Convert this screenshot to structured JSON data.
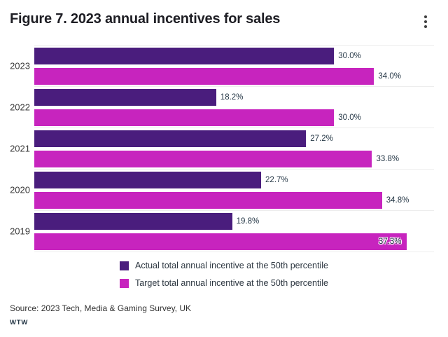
{
  "header": {
    "title": "Figure 7. 2023 annual incentives for sales",
    "menu_icon": "kebab-menu-icon"
  },
  "chart_data": {
    "type": "bar",
    "orientation": "horizontal",
    "title": "Figure 7. 2023 annual incentives for sales",
    "categories": [
      "2023",
      "2022",
      "2021",
      "2020",
      "2019"
    ],
    "series": [
      {
        "name": "Actual total annual incentive at the 50th percentile",
        "color": "#4A1D7D",
        "values": [
          30.0,
          18.2,
          27.2,
          22.7,
          19.8
        ]
      },
      {
        "name": "Target total annual incentive at the 50th percentile",
        "color": "#C724BE",
        "values": [
          34.0,
          30.0,
          33.8,
          34.8,
          37.3
        ]
      }
    ],
    "value_format": "{value}%",
    "xlabel": "",
    "ylabel": "",
    "xlim": [
      0,
      40
    ],
    "grid": "group-separator-lines",
    "legend_position": "bottom-center"
  },
  "footer": {
    "source": "Source: 2023 Tech, Media & Gaming Survey, UK",
    "brand": "WTW"
  }
}
